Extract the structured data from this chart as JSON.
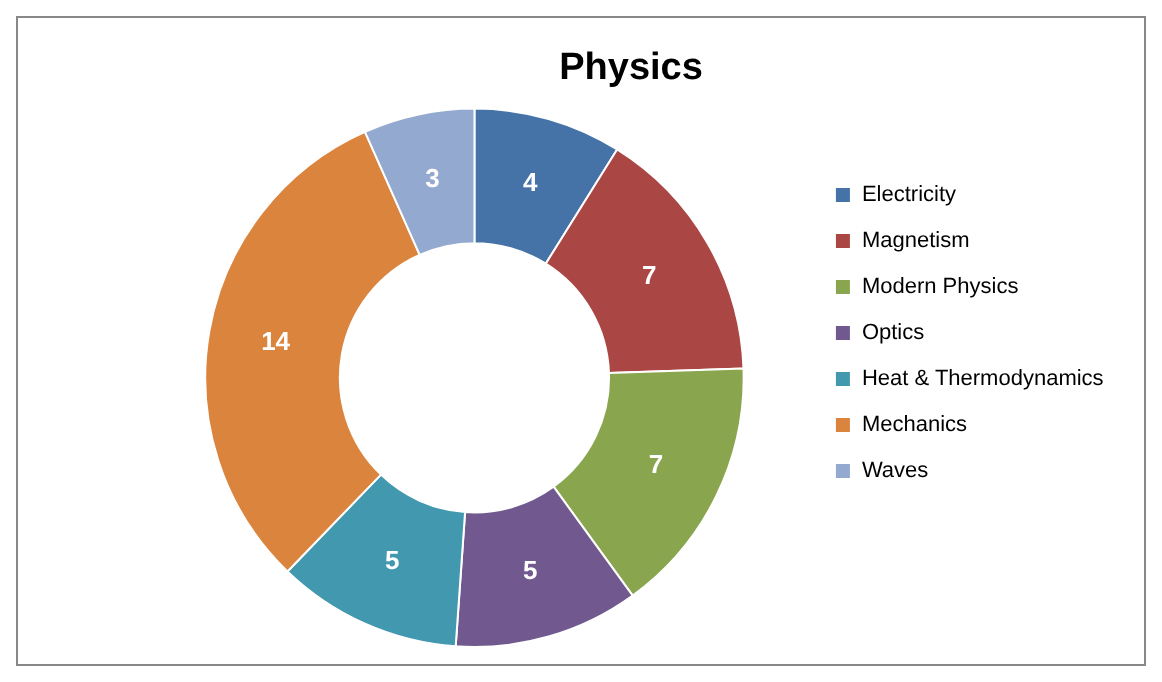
{
  "chart_data": {
    "type": "donut",
    "title": "Physics",
    "categories": [
      "Electricity",
      "Magnetism",
      "Modern Physics",
      "Optics",
      "Heat & Thermodynamics",
      "Mechanics",
      "Waves"
    ],
    "values": [
      4,
      7,
      7,
      5,
      5,
      14,
      3
    ],
    "colors": [
      "#4572a7",
      "#aa4643",
      "#89a54e",
      "#71588f",
      "#4198af",
      "#db843d",
      "#93a9cf"
    ],
    "data_labels": true,
    "legend": "right"
  }
}
